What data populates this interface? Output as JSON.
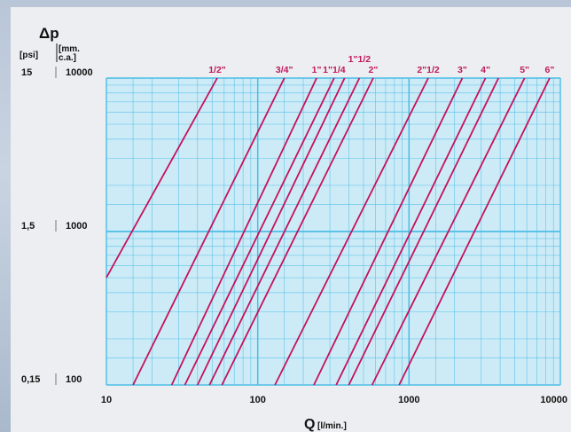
{
  "chart_data": {
    "type": "line",
    "x_scale": "log",
    "y_scale": "log",
    "xlim": [
      10,
      10000
    ],
    "ylim_mmca": [
      100,
      10000
    ],
    "grid": true,
    "y_title": "Δp",
    "y_units": [
      "[psi]",
      "[mm.",
      "c.a.]"
    ],
    "x_title": "Q",
    "x_unit": "[l/min.]",
    "x_ticks": [
      {
        "value": 10,
        "label": "10"
      },
      {
        "value": 100,
        "label": "100"
      },
      {
        "value": 1000,
        "label": "1000"
      },
      {
        "value": 10000,
        "label": "10000"
      }
    ],
    "y_ticks": [
      {
        "value": 10000,
        "psi": "15",
        "mmca": "10000"
      },
      {
        "value": 1000,
        "psi": "1,5",
        "mmca": "1000"
      },
      {
        "value": 100,
        "psi": "0,15",
        "mmca": "100"
      }
    ],
    "series": [
      {
        "name": "1/2\"",
        "points": [
          [
            10,
            501
          ],
          [
            54,
            10000
          ]
        ]
      },
      {
        "name": "3/4\"",
        "points": [
          [
            15,
            100
          ],
          [
            150,
            10000
          ]
        ]
      },
      {
        "name": "1\"",
        "points": [
          [
            27,
            100
          ],
          [
            245,
            10000
          ]
        ]
      },
      {
        "name": "1\"1/4",
        "points": [
          [
            33,
            100
          ],
          [
            320,
            10000
          ]
        ]
      },
      {
        "name": "",
        "points": [
          [
            40,
            100
          ],
          [
            375,
            10000
          ]
        ]
      },
      {
        "name": "1\"1/2",
        "points": [
          [
            48,
            100
          ],
          [
            470,
            10000
          ]
        ]
      },
      {
        "name": "2\"",
        "points": [
          [
            58,
            100
          ],
          [
            580,
            10000
          ]
        ]
      },
      {
        "name": "2\"1/2",
        "points": [
          [
            130,
            100
          ],
          [
            1340,
            10000
          ]
        ]
      },
      {
        "name": "3\"",
        "points": [
          [
            235,
            100
          ],
          [
            2250,
            10000
          ]
        ]
      },
      {
        "name": "4\"",
        "points": [
          [
            330,
            100
          ],
          [
            3200,
            10000
          ]
        ]
      },
      {
        "name": "",
        "points": [
          [
            400,
            100
          ],
          [
            3900,
            10000
          ]
        ]
      },
      {
        "name": "5\"",
        "points": [
          [
            570,
            100
          ],
          [
            5800,
            10000
          ]
        ]
      },
      {
        "name": "6\"",
        "points": [
          [
            860,
            100
          ],
          [
            8500,
            10000
          ]
        ]
      }
    ],
    "colors": {
      "plot_bg": "#cdebf7",
      "grid": "#4dbde6",
      "line": "#c4125b",
      "label": "#c0185d"
    }
  }
}
